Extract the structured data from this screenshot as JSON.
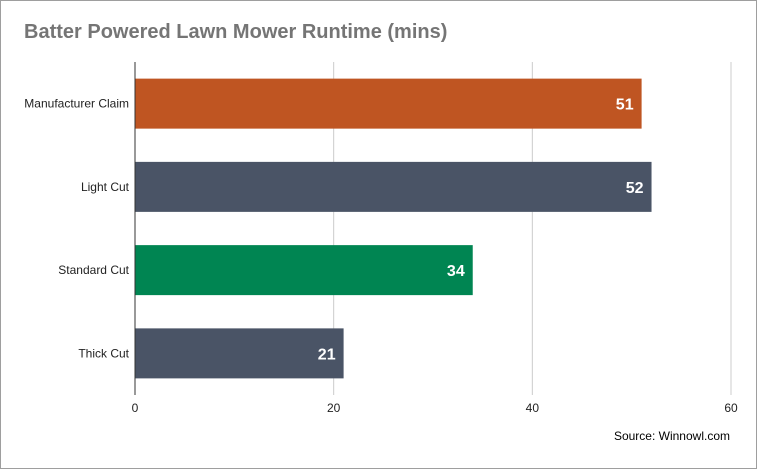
{
  "chart_data": {
    "type": "bar",
    "orientation": "horizontal",
    "title": "Batter Powered Lawn Mower Runtime (mins)",
    "categories": [
      "Manufacturer Claim",
      "Light Cut",
      "Standard Cut",
      "Thick Cut"
    ],
    "values": [
      51,
      52,
      34,
      21
    ],
    "bar_colors": [
      "#bf5522",
      "#4a5466",
      "#008552",
      "#4a5466"
    ],
    "xlim": [
      0,
      60
    ],
    "x_ticks": [
      0,
      20,
      40,
      60
    ],
    "grid": true,
    "legend": "none",
    "data_labels": true
  },
  "footer": {
    "source": "Source: Winnowl.com"
  }
}
